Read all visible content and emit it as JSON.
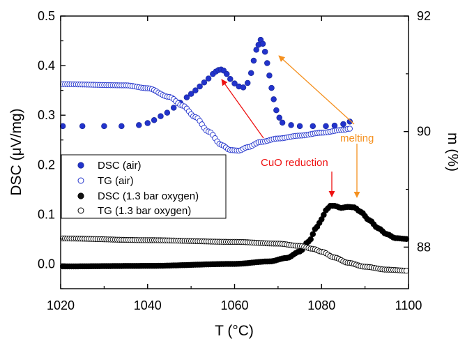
{
  "chart_data": {
    "type": "scatter",
    "xlabel": "T (°C)",
    "ylabel": "DSC (μV/mg)",
    "y2label": "m (%)",
    "xlim": [
      1020,
      1100
    ],
    "ylim": [
      -0.05,
      0.5
    ],
    "y2lim": [
      87.28,
      92.0
    ],
    "x_ticks": [
      "1020",
      "1040",
      "1060",
      "1080",
      "1100"
    ],
    "y_ticks": [
      "0.0",
      "0.1",
      "0.2",
      "0.3",
      "0.4",
      "0.5"
    ],
    "y2_ticks": [
      "88",
      "90",
      "92"
    ],
    "grid": false,
    "legend_position": "middle-left",
    "series": [
      {
        "name": "DSC (air)",
        "axis": "left",
        "marker": "filled",
        "color": "#2233cc",
        "points": [
          [
            1020.5,
            0.278
          ],
          [
            1025,
            0.278
          ],
          [
            1030,
            0.278
          ],
          [
            1034,
            0.278
          ],
          [
            1038,
            0.28
          ],
          [
            1040,
            0.284
          ],
          [
            1041.5,
            0.29
          ],
          [
            1043,
            0.298
          ],
          [
            1044.5,
            0.305
          ],
          [
            1046,
            0.315
          ],
          [
            1047.5,
            0.325
          ],
          [
            1049,
            0.336
          ],
          [
            1050,
            0.343
          ],
          [
            1051,
            0.35
          ],
          [
            1052,
            0.358
          ],
          [
            1053,
            0.366
          ],
          [
            1054,
            0.374
          ],
          [
            1055,
            0.383
          ],
          [
            1055.7,
            0.388
          ],
          [
            1056.3,
            0.391
          ],
          [
            1056.9,
            0.392
          ],
          [
            1057.5,
            0.39
          ],
          [
            1058.2,
            0.383
          ],
          [
            1059,
            0.373
          ],
          [
            1060,
            0.364
          ],
          [
            1061,
            0.358
          ],
          [
            1062,
            0.356
          ],
          [
            1063,
            0.365
          ],
          [
            1063.8,
            0.385
          ],
          [
            1064.4,
            0.41
          ],
          [
            1065,
            0.432
          ],
          [
            1065.5,
            0.442
          ],
          [
            1066,
            0.452
          ],
          [
            1066.5,
            0.444
          ],
          [
            1067,
            0.428
          ],
          [
            1067.5,
            0.405
          ],
          [
            1068,
            0.38
          ],
          [
            1068.5,
            0.355
          ],
          [
            1069,
            0.332
          ],
          [
            1069.6,
            0.31
          ],
          [
            1070.3,
            0.295
          ],
          [
            1071,
            0.285
          ],
          [
            1073,
            0.28
          ],
          [
            1075,
            0.278
          ],
          [
            1078,
            0.278
          ],
          [
            1081,
            0.278
          ],
          [
            1083,
            0.279
          ],
          [
            1085,
            0.282
          ],
          [
            1086.5,
            0.287
          ]
        ]
      },
      {
        "name": "TG (air)",
        "axis": "right",
        "marker": "open",
        "color": "#2233cc",
        "x_start": 1020.5,
        "x_end": 1086.5,
        "anchors": [
          [
            1020,
            90.82
          ],
          [
            1035,
            90.8
          ],
          [
            1040,
            90.75
          ],
          [
            1045,
            90.6
          ],
          [
            1048,
            90.45
          ],
          [
            1051,
            90.25
          ],
          [
            1054,
            90.0
          ],
          [
            1057,
            89.77
          ],
          [
            1059,
            89.68
          ],
          [
            1061,
            89.67
          ],
          [
            1063,
            89.73
          ],
          [
            1066,
            89.82
          ],
          [
            1070,
            89.88
          ],
          [
            1075,
            89.93
          ],
          [
            1080,
            89.98
          ],
          [
            1085,
            90.03
          ],
          [
            1086.5,
            90.05
          ]
        ]
      },
      {
        "name": "DSC (1.3 bar oxygen)",
        "axis": "left",
        "marker": "filled",
        "color": "#000000",
        "x_start": 1020.5,
        "x_end": 1099.5,
        "anchors": [
          [
            1020,
            -0.005
          ],
          [
            1040,
            -0.004
          ],
          [
            1060,
            0.0
          ],
          [
            1068,
            0.005
          ],
          [
            1072,
            0.012
          ],
          [
            1075,
            0.025
          ],
          [
            1077,
            0.045
          ],
          [
            1079,
            0.075
          ],
          [
            1080,
            0.09
          ],
          [
            1081,
            0.108
          ],
          [
            1082,
            0.117
          ],
          [
            1083,
            0.117
          ],
          [
            1084.5,
            0.113
          ],
          [
            1086,
            0.115
          ],
          [
            1087.5,
            0.114
          ],
          [
            1089,
            0.105
          ],
          [
            1091,
            0.088
          ],
          [
            1093,
            0.072
          ],
          [
            1095,
            0.06
          ],
          [
            1097,
            0.052
          ],
          [
            1100,
            0.05
          ]
        ]
      },
      {
        "name": "TG (1.3 bar oxygen)",
        "axis": "right",
        "marker": "open",
        "color": "#000000",
        "x_start": 1020.5,
        "x_end": 1099.5,
        "anchors": [
          [
            1020,
            88.15
          ],
          [
            1040,
            88.12
          ],
          [
            1060,
            88.09
          ],
          [
            1070,
            88.06
          ],
          [
            1075,
            88.02
          ],
          [
            1078,
            87.97
          ],
          [
            1080,
            87.92
          ],
          [
            1083,
            87.82
          ],
          [
            1086,
            87.73
          ],
          [
            1090,
            87.66
          ],
          [
            1095,
            87.61
          ],
          [
            1100,
            87.59
          ]
        ]
      }
    ],
    "annotations": [
      {
        "text": "CuO reduction",
        "color": "#ee1111"
      },
      {
        "text": "melting",
        "color": "#f5901e"
      }
    ]
  }
}
